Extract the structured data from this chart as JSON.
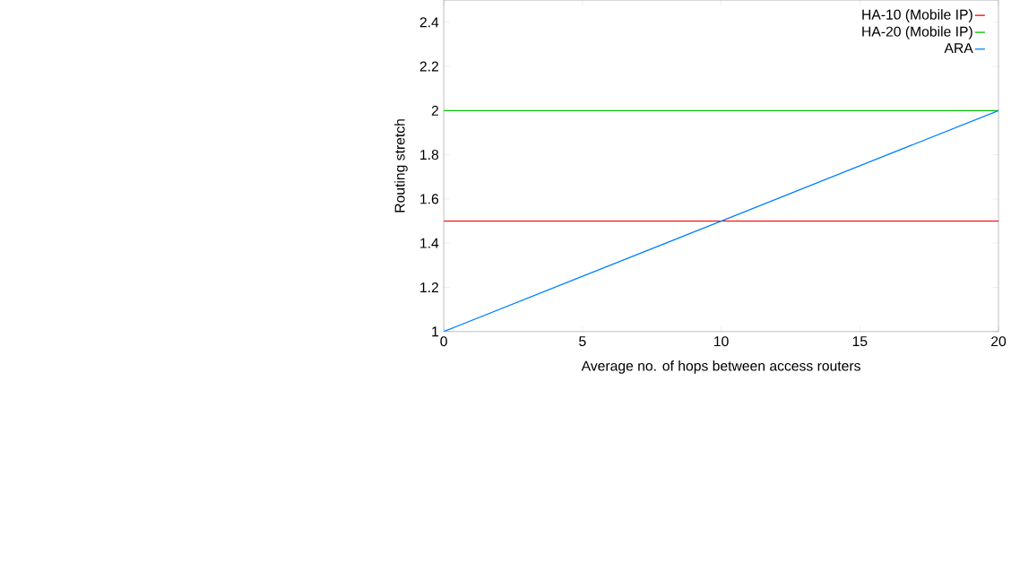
{
  "chart_data": {
    "type": "line",
    "xlabel": "Average no. of hops between access routers",
    "ylabel": "Routing stretch",
    "x": [
      0,
      20
    ],
    "series": [
      {
        "name": "HA-10 (Mobile IP)",
        "color": "#ff0000",
        "values": [
          1.5,
          1.5
        ]
      },
      {
        "name": "HA-20 (Mobile IP)",
        "color": "#00c000",
        "values": [
          2,
          2
        ]
      },
      {
        "name": "ARA",
        "color": "#0080ff",
        "x": [
          0,
          5,
          10,
          15,
          20
        ],
        "values": [
          1,
          1.25,
          1.5,
          1.75,
          2
        ]
      }
    ],
    "xlim": [
      0,
      20
    ],
    "ylim": [
      1,
      2.5
    ],
    "xticks": [
      0,
      5,
      10,
      15,
      20
    ],
    "yticks": [
      1,
      1.2,
      1.4,
      1.6,
      1.8,
      2,
      2.2,
      2.4
    ],
    "legend": "top right",
    "marker": "none",
    "line_style": "solid"
  }
}
